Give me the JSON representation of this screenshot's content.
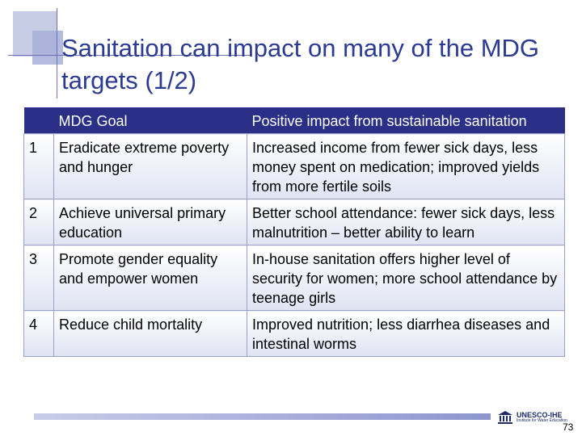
{
  "title": "Sanitation can impact on many of the MDG targets (1/2)",
  "table": {
    "headers": [
      "",
      "MDG Goal",
      "Positive impact from sustainable sanitation"
    ],
    "rows": [
      {
        "num": "1",
        "goal": "Eradicate extreme poverty and hunger",
        "impact": "Increased income from fewer sick days, less money spent on medication; improved yields from more fertile soils"
      },
      {
        "num": "2",
        "goal": "Achieve universal primary education",
        "impact": "Better school attendance: fewer sick days, less malnutrition – better ability to learn"
      },
      {
        "num": "3",
        "goal": "Promote gender equality and empower women",
        "impact": "In-house sanitation offers higher level of security for women; more school attendance by teenage girls"
      },
      {
        "num": "4",
        "goal": "Reduce child mortality",
        "impact": "Improved nutrition; less diarrhea diseases and intestinal worms"
      }
    ]
  },
  "footer": {
    "logo_name": "UNESCO-IHE",
    "logo_sub": "Institute for Water Education",
    "page_number": "73"
  },
  "colors": {
    "title": "#2b3a92",
    "header_bg": "#2b2f87"
  }
}
